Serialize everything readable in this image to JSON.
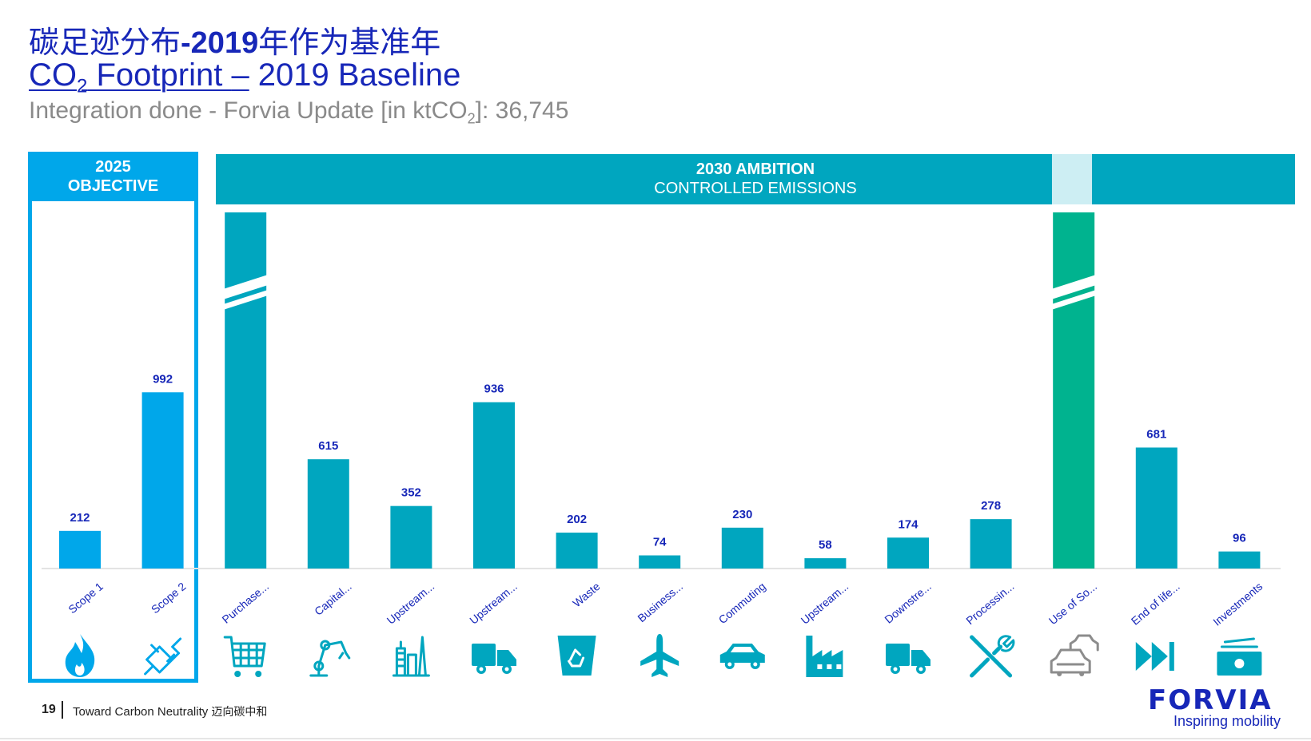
{
  "header": {
    "title_cn_prefix": "碳足迹分布",
    "title_cn_year": "-2019",
    "title_cn_suffix": "年作为基准年",
    "title_en_co": "CO",
    "title_en_sub": "2",
    "title_en_footprint": " Footprint ",
    "title_en_dash": "–",
    "title_en_rest": " 2019 Baseline",
    "subtitle_prefix": "Integration done - Forvia Update [in ktCO",
    "subtitle_sub": "2",
    "subtitle_suffix": "]: 36,745"
  },
  "objective_box": {
    "line1": "2025",
    "line2": "OBJECTIVE"
  },
  "ambition_box": {
    "line1": "2030 AMBITION",
    "line2": "CONTROLLED EMISSIONS"
  },
  "colors": {
    "scope": "#00a7ea",
    "controlled": "#00a6bf",
    "use_of_sold": "#00b38f",
    "label": "#1727b8",
    "use_icon": "#8c8c8c"
  },
  "chart_data": {
    "type": "bar",
    "title": "CO2 Footprint – 2019 Baseline",
    "ylabel": "ktCO2",
    "ylim": [
      0,
      1100
    ],
    "categories": [
      "Scope 1",
      "Scope 2",
      "Purchase...",
      "Capital...",
      "Upstream...",
      "Upstream...",
      "Waste",
      "Business...",
      "Commuting",
      "Upstream...",
      "Downstre...",
      "Processin...",
      "Use of So...",
      "End of life...",
      "Investments"
    ],
    "values": [
      212,
      992,
      null,
      615,
      352,
      936,
      202,
      74,
      230,
      58,
      174,
      278,
      null,
      681,
      96
    ],
    "value_labels": [
      "212",
      "992",
      "",
      "615",
      "352",
      "936",
      "202",
      "74",
      "230",
      "58",
      "174",
      "278",
      "",
      "681",
      "96"
    ],
    "truncated_bars": [
      "Purchase...",
      "Use of So..."
    ],
    "groups": [
      {
        "name": "2025 OBJECTIVE",
        "categories": [
          "Scope 1",
          "Scope 2"
        ]
      },
      {
        "name": "2030 AMBITION CONTROLLED EMISSIONS",
        "categories": [
          "Purchase...",
          "Capital...",
          "Upstream...",
          "Upstream...",
          "Waste",
          "Business...",
          "Commuting",
          "Upstream...",
          "Downstre...",
          "Processin...",
          "Use of So...",
          "End of life...",
          "Investments"
        ]
      }
    ],
    "icons": [
      "flame-icon",
      "plug-icon",
      "shopping-cart-icon",
      "robot-arm-icon",
      "refinery-icon",
      "truck-icon",
      "recycle-bin-icon",
      "airplane-icon",
      "car-icon",
      "factory-icon",
      "truck-icon",
      "tools-icon",
      "cars-icon",
      "fast-forward-icon",
      "money-icon"
    ]
  },
  "footer": {
    "page": "19",
    "text": "Toward Carbon Neutrality ",
    "text_cn": "迈向碳中和",
    "logo": "FORVIA",
    "tagline": "Inspiring mobility"
  }
}
